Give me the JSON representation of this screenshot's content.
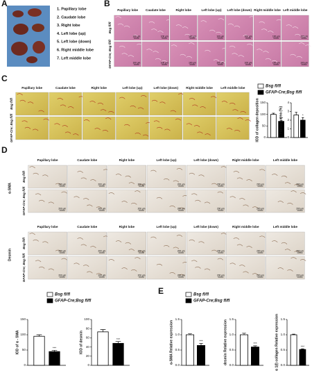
{
  "panel_a": {
    "label": "A",
    "items": [
      "1. Papillary lobe",
      "2. Caudate lobe",
      "3. Right lobe",
      "4. Left lobe (up)",
      "5. Left lobe (down)",
      "6. Right middle lobe",
      "7. Left middle lobe"
    ]
  },
  "panel_b": {
    "label": "B",
    "columns": [
      "Papillary lobe",
      "Caudate lobe",
      "Right lobe",
      "Left lobe (up)",
      "Left lobe (down)",
      "Right middle lobe",
      "Left middle lobe"
    ],
    "rows": [
      "Bsg fl/fl",
      "GFAP-Cre; Bsg fl/fl"
    ],
    "scale_bar": "100 μm"
  },
  "panel_c": {
    "label": "C",
    "columns": [
      "Papillary lobe",
      "Caudate lobe",
      "Right lobe",
      "Left lobe (up)",
      "Left lobe (down)",
      "Right middle lobe",
      "Left middle lobe"
    ],
    "rows": [
      "Bsg fl/fl",
      "GFAP-Cre; Bsg fl/fl"
    ],
    "legend": [
      {
        "name": "Bsg fl/fl",
        "color": "#ffffff"
      },
      {
        "name": "GFAP-Cre;Bsg fl/fl",
        "color": "#000000"
      }
    ]
  },
  "panel_d": {
    "label": "D",
    "columns": [
      "Papillary lobe",
      "Caudate lobe",
      "Right lobe",
      "Left lobe (up)",
      "Left lobe (down)",
      "Right middle lobe",
      "Left middle lobe"
    ],
    "markers": [
      "α-SMA",
      "Desmin"
    ],
    "rows": [
      "Bsg fl/fl",
      "GFAP-Cre; Bsg fl/fl"
    ],
    "scale_bar": "200 μm",
    "legend": [
      {
        "name": "Bsg fl/fl",
        "color": "#ffffff"
      },
      {
        "name": "GFAP-Cre;Bsg fl/fl",
        "color": "#000000"
      }
    ]
  },
  "panel_e": {
    "label": "E",
    "legend": [
      {
        "name": "Bsg fl/fl",
        "color": "#ffffff"
      },
      {
        "name": "GFAP-Cre;Bsg fl/fl",
        "color": "#000000"
      }
    ]
  },
  "chart_data": [
    {
      "type": "bar",
      "ylabel": "IOD of collagen deposition",
      "values": [
        100,
        70
      ],
      "errors": [
        5,
        4
      ],
      "colors": [
        "#ffffff",
        "#000000"
      ],
      "ylim": [
        0,
        150
      ],
      "yticks": [
        0,
        50,
        100,
        150
      ],
      "annotation": "***"
    },
    {
      "type": "bar",
      "ylabel": "Fibrosis area (%)",
      "values": [
        2.6,
        2.0
      ],
      "errors": [
        0.3,
        0.3
      ],
      "colors": [
        "#ffffff",
        "#000000"
      ],
      "ylim": [
        0,
        4
      ],
      "yticks": [
        0,
        1,
        2,
        3,
        4
      ],
      "annotation": "*"
    },
    {
      "type": "bar",
      "ylabel": "IOD of α - SMA",
      "values": [
        95,
        45
      ],
      "errors": [
        5,
        4
      ],
      "colors": [
        "#ffffff",
        "#000000"
      ],
      "ylim": [
        0,
        150
      ],
      "yticks": [
        0,
        50,
        100,
        150
      ],
      "annotation": "***"
    },
    {
      "type": "bar",
      "ylabel": "IOD of desmin",
      "values": [
        73,
        48
      ],
      "errors": [
        5,
        4
      ],
      "colors": [
        "#ffffff",
        "#000000"
      ],
      "ylim": [
        0,
        100
      ],
      "yticks": [
        0,
        20,
        40,
        60,
        80,
        100
      ],
      "annotation": "***"
    },
    {
      "type": "bar",
      "ylabel": "α-SMA Relative expression",
      "values": [
        1.0,
        0.65
      ],
      "errors": [
        0.03,
        0.07
      ],
      "colors": [
        "#ffffff",
        "#000000"
      ],
      "ylim": [
        0,
        1.5
      ],
      "yticks": [
        {
          "value": 0,
          "label": "0.0"
        },
        0.5,
        {
          "value": 1,
          "label": "1.0"
        },
        1.5
      ],
      "annotation": "***"
    },
    {
      "type": "bar",
      "ylabel": "desmin Relative expression",
      "values": [
        1.0,
        0.6
      ],
      "errors": [
        0.05,
        0.04
      ],
      "colors": [
        "#ffffff",
        "#000000"
      ],
      "ylim": [
        0,
        1.5
      ],
      "yticks": [
        {
          "value": 0,
          "label": "0.0"
        },
        0.5,
        {
          "value": 1,
          "label": "1.0"
        },
        1.5
      ],
      "annotation": "***"
    },
    {
      "type": "bar",
      "ylabel": "α 1(I) collagen Relative expression",
      "values": [
        1.0,
        0.52
      ],
      "errors": [
        0.02,
        0.02
      ],
      "colors": [
        "#ffffff",
        "#000000"
      ],
      "ylim": [
        0,
        1.5
      ],
      "yticks": [
        {
          "value": 0,
          "label": "0.0"
        },
        0.5,
        {
          "value": 1,
          "label": "1.0"
        },
        1.5
      ],
      "annotation": "***"
    }
  ]
}
